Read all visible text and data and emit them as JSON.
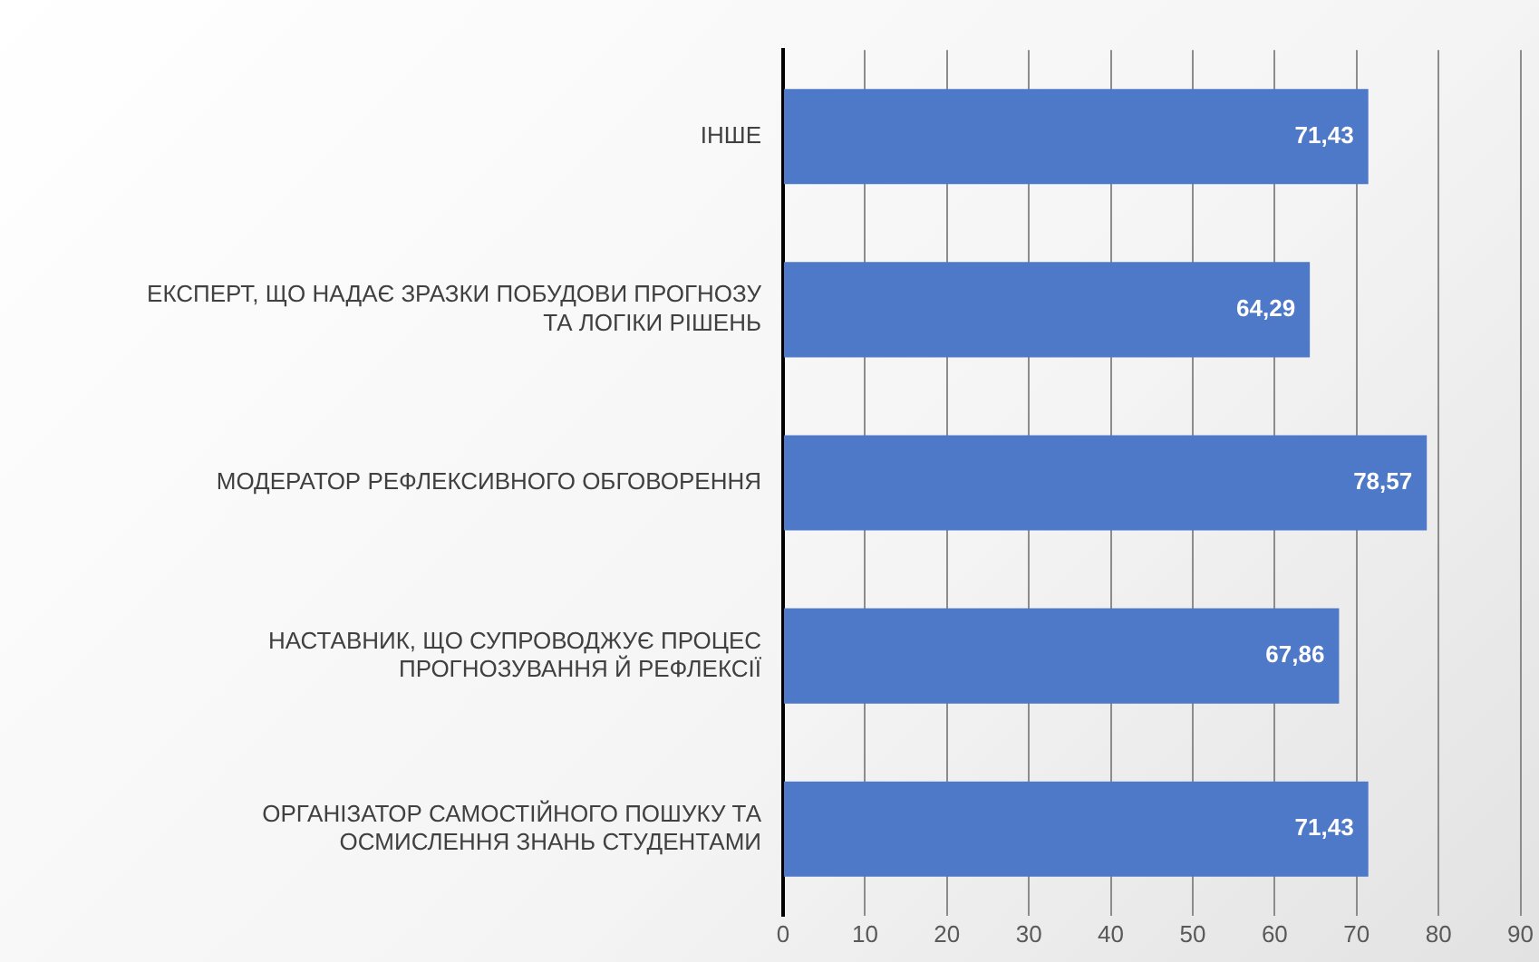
{
  "chart_data": {
    "type": "bar",
    "orientation": "horizontal",
    "categories": [
      "ІНШЕ",
      "ЕКСПЕРТ, ЩО НАДАЄ ЗРАЗКИ ПОБУДОВИ ПРОГНОЗУ\nТА ЛОГІКИ РІШЕНЬ",
      "МОДЕРАТОР РЕФЛЕКСИВНОГО ОБГОВОРЕННЯ",
      "НАСТАВНИК, ЩО СУПРОВОДЖУЄ ПРОЦЕС\nПРОГНОЗУВАННЯ Й РЕФЛЕКСІЇ",
      "ОРГАНІЗАТОР САМОСТІЙНОГО ПОШУКУ ТА\nОСМИСЛЕННЯ ЗНАНЬ СТУДЕНТАМИ"
    ],
    "values": [
      71.43,
      64.29,
      78.57,
      67.86,
      71.43
    ],
    "color": "#4e78c8",
    "xlim": [
      0,
      90
    ],
    "xticks": [
      0,
      10,
      20,
      30,
      40,
      50,
      60,
      70,
      80,
      90
    ],
    "value_labels": [
      "71,43",
      "64,29",
      "78,57",
      "67,86",
      "71,43"
    ],
    "grid": "x"
  }
}
